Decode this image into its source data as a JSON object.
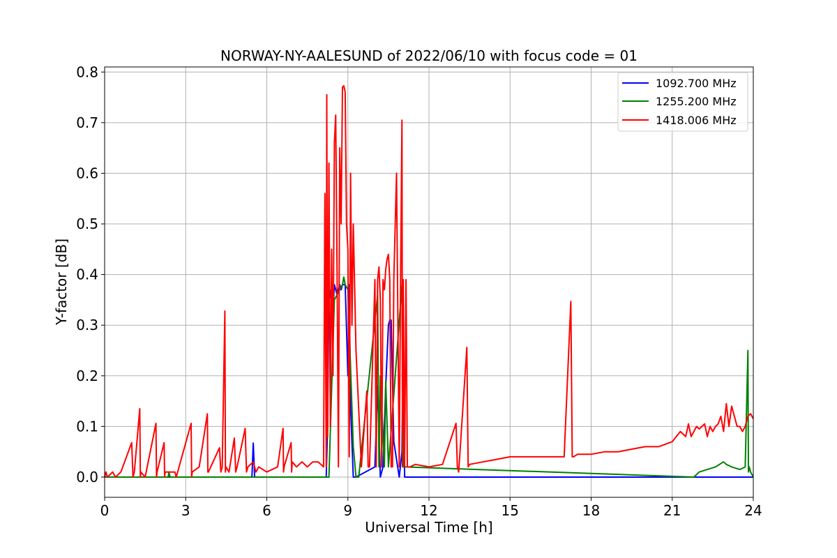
{
  "chart_data": {
    "type": "line",
    "title": "NORWAY-NY-AALESUND of 2022/06/10 with focus code = 01",
    "xlabel": "Universal Time [h]",
    "ylabel": "Y-factor [dB]",
    "xlim": [
      0,
      24
    ],
    "ylim": [
      -0.04,
      0.81
    ],
    "xticks": [
      0,
      3,
      6,
      9,
      12,
      15,
      18,
      21,
      24
    ],
    "xtick_labels": [
      "0",
      "3",
      "6",
      "9",
      "12",
      "15",
      "18",
      "21",
      "24"
    ],
    "yticks": [
      0.0,
      0.1,
      0.2,
      0.3,
      0.4,
      0.5,
      0.6,
      0.7,
      0.8
    ],
    "ytick_labels": [
      "0.0",
      "0.1",
      "0.2",
      "0.3",
      "0.4",
      "0.5",
      "0.6",
      "0.7",
      "0.8"
    ],
    "grid": true,
    "legend_position": "top-right",
    "series": [
      {
        "name": "1092.700 MHz",
        "color": "#0000ff",
        "x": [
          0,
          5.45,
          5.5,
          5.55,
          8.2,
          8.25,
          8.3,
          8.45,
          8.5,
          8.6,
          8.7,
          8.75,
          8.8,
          8.9,
          9.0,
          9.05,
          9.1,
          9.2,
          9.3,
          10.0,
          10.1,
          10.2,
          10.3,
          10.4,
          10.5,
          10.55,
          10.6,
          10.7,
          10.9,
          11.0,
          11.05,
          11.1,
          11.2,
          24
        ],
        "y": [
          0,
          0,
          0.067,
          0,
          0,
          0.1,
          0.38,
          0.33,
          0.38,
          0.36,
          0.38,
          0.37,
          0.38,
          0.38,
          0.2,
          0.38,
          0.14,
          0,
          0,
          0.02,
          0.18,
          0,
          0.02,
          0.18,
          0.3,
          0.31,
          0.31,
          0.07,
          0,
          0.05,
          0.3,
          0,
          0,
          0
        ]
      },
      {
        "name": "1255.200 MHz",
        "color": "#008000",
        "x": [
          0,
          2.35,
          2.38,
          2.42,
          8.3,
          8.5,
          8.8,
          8.85,
          8.9,
          9.0,
          9.2,
          9.3,
          9.4,
          10.1,
          10.15,
          10.2,
          10.35,
          10.4,
          10.5,
          11.0,
          11.05,
          11.1,
          21.8,
          22.0,
          22.3,
          22.6,
          22.9,
          23.0,
          23.2,
          23.5,
          23.7,
          23.8,
          23.82,
          23.85,
          23.9,
          24
        ],
        "y": [
          0,
          0,
          0.01,
          0,
          0,
          0.35,
          0.38,
          0.395,
          0.38,
          0.37,
          0.06,
          0,
          0,
          0.36,
          0.02,
          0.2,
          0.02,
          0.19,
          0.02,
          0.38,
          0.02,
          0.02,
          0,
          0.01,
          0.015,
          0.02,
          0.03,
          0.025,
          0.02,
          0.015,
          0.02,
          0.25,
          0.01,
          0.02,
          0.01,
          0
        ]
      },
      {
        "name": "1418.006 MHz",
        "color": "#ff0000",
        "x": [
          0,
          0.05,
          0.1,
          0.3,
          0.4,
          0.6,
          1.0,
          1.05,
          1.1,
          1.3,
          1.32,
          1.34,
          1.5,
          1.9,
          1.92,
          1.94,
          2.2,
          2.22,
          2.24,
          2.6,
          2.65,
          3.2,
          3.22,
          3.24,
          3.5,
          3.8,
          3.82,
          3.84,
          4.25,
          4.3,
          4.35,
          4.45,
          4.47,
          4.49,
          4.6,
          4.8,
          4.85,
          4.9,
          5.2,
          5.25,
          5.3,
          5.5,
          5.6,
          5.7,
          6.0,
          6.4,
          6.6,
          6.62,
          6.64,
          6.9,
          6.92,
          6.94,
          7.1,
          7.3,
          7.5,
          7.7,
          7.9,
          8.1,
          8.15,
          8.2,
          8.22,
          8.25,
          8.3,
          8.35,
          8.4,
          8.45,
          8.5,
          8.55,
          8.6,
          8.65,
          8.7,
          8.75,
          8.8,
          8.85,
          8.9,
          8.95,
          9.0,
          9.05,
          9.1,
          9.15,
          9.2,
          9.3,
          9.5,
          9.7,
          9.75,
          9.8,
          10.0,
          10.05,
          10.1,
          10.15,
          10.2,
          10.25,
          10.3,
          10.35,
          10.4,
          10.45,
          10.5,
          10.55,
          10.6,
          10.65,
          10.7,
          10.8,
          10.9,
          10.95,
          11.0,
          11.02,
          11.05,
          11.1,
          11.15,
          11.2,
          11.3,
          11.5,
          12.0,
          12.5,
          13.0,
          13.05,
          13.1,
          13.4,
          13.45,
          13.5,
          14.0,
          14.5,
          15.0,
          15.5,
          16.0,
          16.5,
          17.0,
          17.25,
          17.3,
          17.35,
          17.5,
          18.0,
          18.5,
          19.0,
          19.5,
          20.0,
          20.5,
          21.0,
          21.3,
          21.5,
          21.6,
          21.7,
          21.8,
          21.9,
          22.0,
          22.1,
          22.2,
          22.3,
          22.4,
          22.5,
          22.6,
          22.7,
          22.8,
          22.9,
          23.0,
          23.1,
          23.2,
          23.3,
          23.4,
          23.5,
          23.6,
          23.7,
          23.8,
          23.9,
          24
        ],
        "y": [
          0,
          0.01,
          0,
          0.01,
          0,
          0.01,
          0.068,
          0,
          0.01,
          0.135,
          0,
          0.01,
          0,
          0.106,
          0,
          0.01,
          0.068,
          0,
          0.01,
          0.01,
          0,
          0.106,
          0,
          0.01,
          0.02,
          0.125,
          0.01,
          0.01,
          0.058,
          0.01,
          0.02,
          0.328,
          0.01,
          0.02,
          0.01,
          0.077,
          0.01,
          0.02,
          0.096,
          0.01,
          0.02,
          0.03,
          0.01,
          0.02,
          0.01,
          0.02,
          0.096,
          0.01,
          0.02,
          0.068,
          0.01,
          0.03,
          0.02,
          0.03,
          0.02,
          0.03,
          0.03,
          0.02,
          0.56,
          0.02,
          0.755,
          0.08,
          0.62,
          0.1,
          0.45,
          0.2,
          0.66,
          0.715,
          0.4,
          0.02,
          0.65,
          0.5,
          0.77,
          0.773,
          0.76,
          0.5,
          0.45,
          0.04,
          0.6,
          0.3,
          0.5,
          0.25,
          0.02,
          0.17,
          0.02,
          0.02,
          0.39,
          0.02,
          0.39,
          0.415,
          0.35,
          0.02,
          0.39,
          0.37,
          0.41,
          0.43,
          0.44,
          0.39,
          0.02,
          0.02,
          0.39,
          0.6,
          0.02,
          0.39,
          0.705,
          0.02,
          0.39,
          0.02,
          0.39,
          0.02,
          0.02,
          0.025,
          0.02,
          0.025,
          0.106,
          0.02,
          0.01,
          0.256,
          0.02,
          0.025,
          0.03,
          0.035,
          0.04,
          0.04,
          0.04,
          0.04,
          0.04,
          0.347,
          0.04,
          0.04,
          0.045,
          0.045,
          0.05,
          0.05,
          0.055,
          0.06,
          0.06,
          0.07,
          0.09,
          0.08,
          0.105,
          0.08,
          0.09,
          0.1,
          0.095,
          0.1,
          0.105,
          0.08,
          0.1,
          0.09,
          0.1,
          0.105,
          0.12,
          0.09,
          0.145,
          0.1,
          0.14,
          0.12,
          0.1,
          0.1,
          0.09,
          0.1,
          0.12,
          0.125,
          0.115
        ]
      }
    ]
  }
}
